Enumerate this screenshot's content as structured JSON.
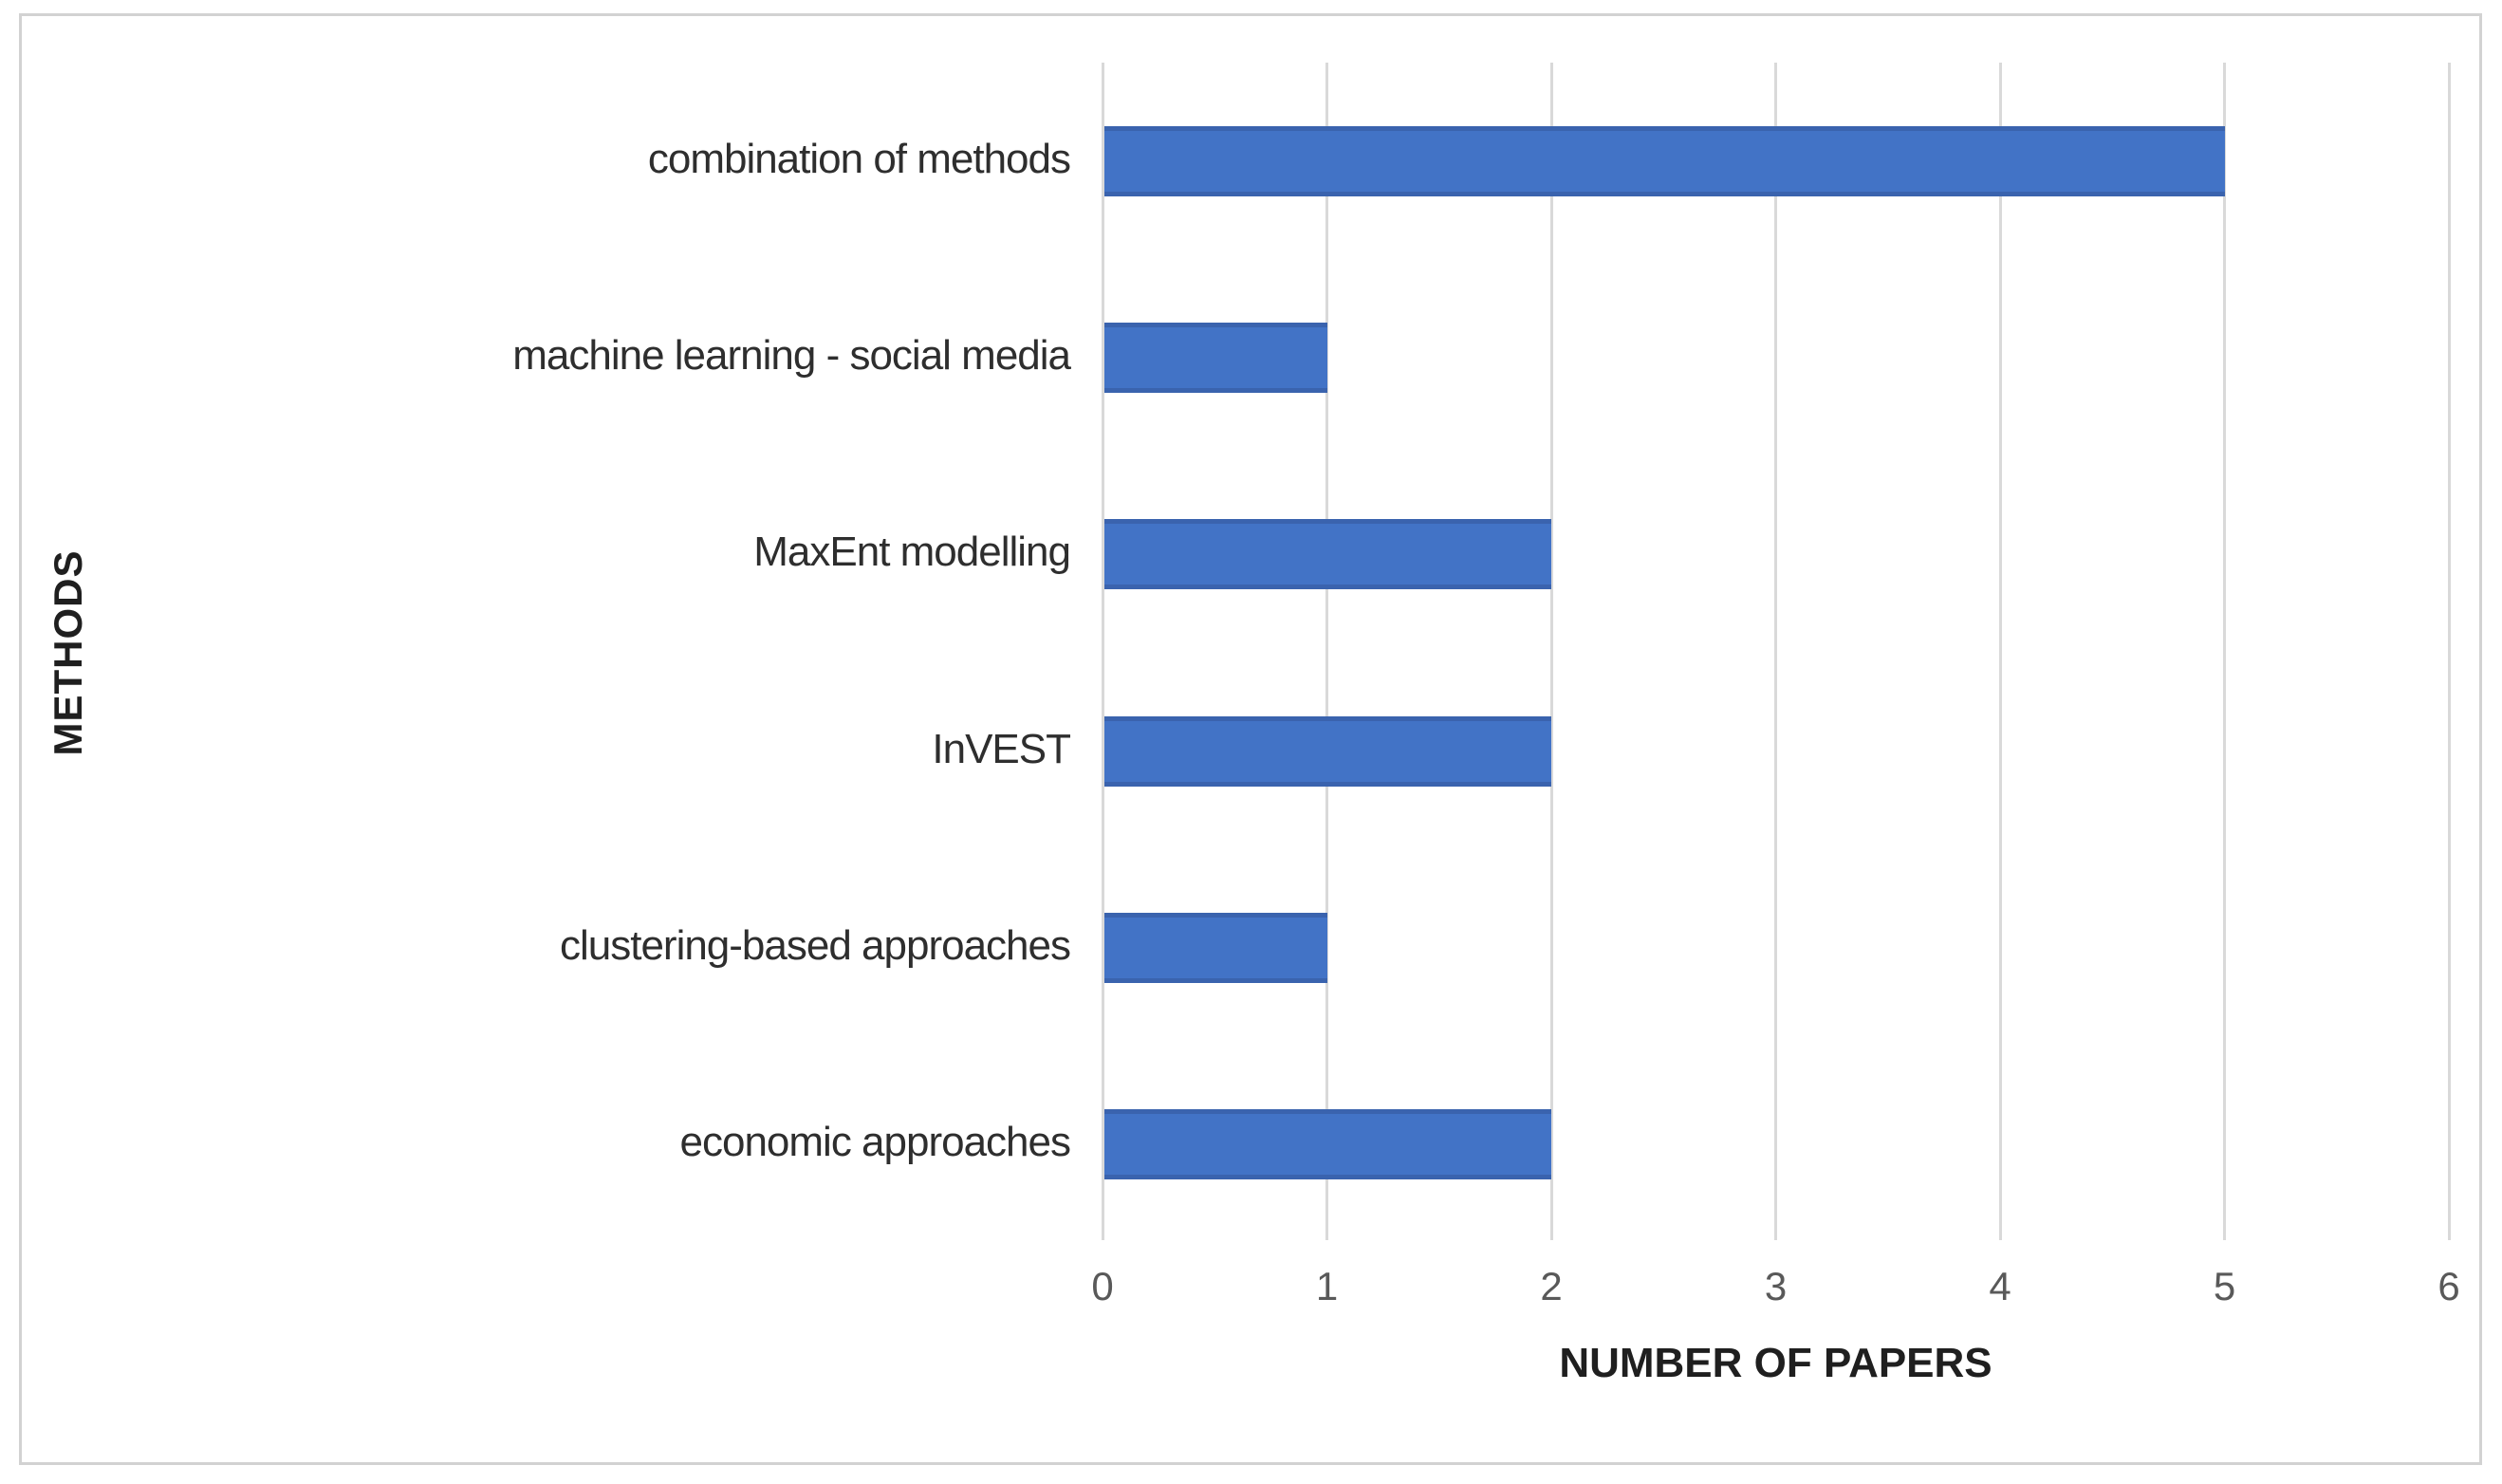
{
  "chart_data": {
    "type": "bar",
    "orientation": "horizontal",
    "categories": [
      "combination of methods",
      "machine learning - social media",
      "MaxEnt modelling",
      "InVEST",
      "clustering-based approaches",
      "economic approaches"
    ],
    "values": [
      5,
      1,
      2,
      2,
      1,
      2
    ],
    "title": "",
    "xlabel": "NUMBER OF PAPERS",
    "ylabel": "METHODS",
    "xlim": [
      0,
      6
    ],
    "x_ticks": [
      0,
      1,
      2,
      3,
      4,
      5,
      6
    ],
    "grid": "vertical-on",
    "legend": "none",
    "colors": {
      "bar_fill": "#4273C6",
      "bar_edge": "#3A63AE",
      "gridline": "#D9D9D9",
      "tick_text": "#595959",
      "category_text": "#2E2E2E",
      "axis_title_text": "#1F1F1F",
      "frame_border": "#D2D2D2",
      "background": "#FFFFFF"
    }
  }
}
